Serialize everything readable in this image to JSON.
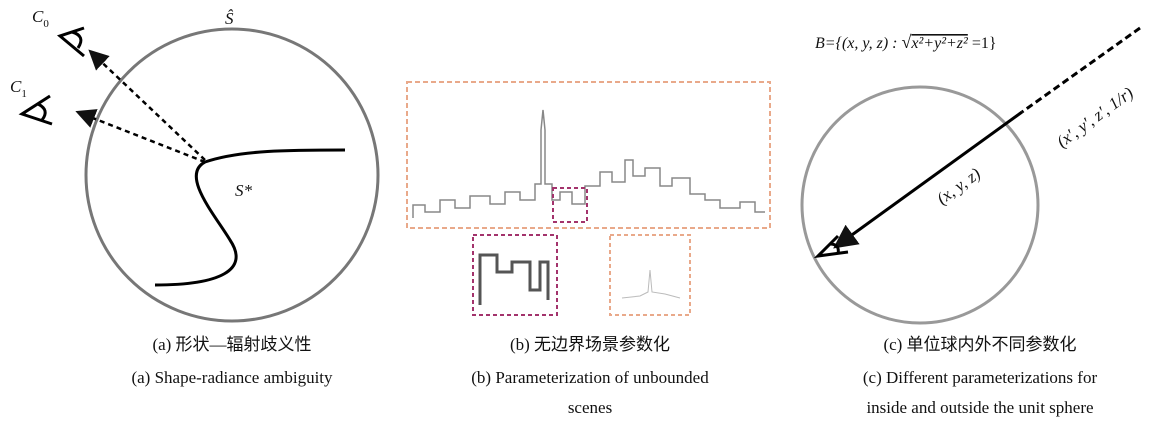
{
  "panels": [
    {
      "labels": {
        "camera0": {
          "letter": "C",
          "subscript": "0"
        },
        "camera1": {
          "letter": "C",
          "subscript": "1"
        },
        "estimated_surface": "Ŝ",
        "true_surface": "S*"
      },
      "caption_zh": "(a) 形状—辐射歧义性",
      "caption_en": "(a) Shape-radiance ambiguity"
    },
    {
      "caption_zh": "(b) 无边界场景参数化",
      "caption_en": [
        "(b) Parameterization of unbounded",
        "scenes"
      ]
    },
    {
      "formula": {
        "left": "B={(x, y, z) : ",
        "radicand": "x²+y²+z²",
        "right": " =1}"
      },
      "inner_label": "(x, y, z)",
      "outer_label": "(x′, y′, z′, 1/r)",
      "caption_zh": "(c) 单位球内外不同参数化",
      "caption_en": [
        "(c) Different parameterizations for",
        "inside and outside the unit sphere"
      ]
    }
  ]
}
